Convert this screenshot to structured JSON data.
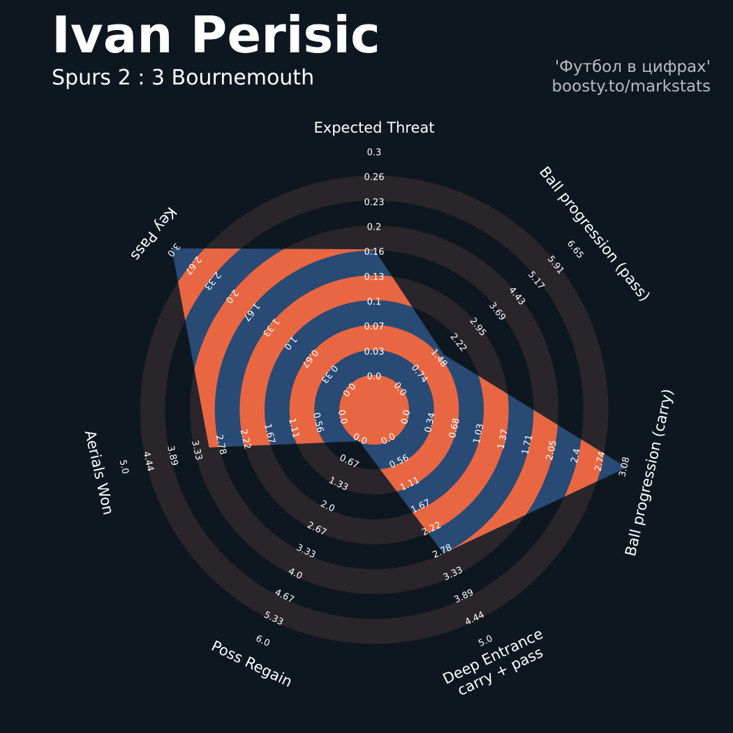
{
  "header": {
    "title": "Ivan Perisic",
    "subtitle": "Spurs 2 : 3 Bournemouth",
    "credit_line1": "'Футбол в цифрах'",
    "credit_line2": "boosty.to/markstats"
  },
  "colors": {
    "background": "#0e171f",
    "ring_band": "#29252b",
    "polygon_blue": "#284a74",
    "polygon_orange": "#e86742",
    "text": "#ffffff"
  },
  "chart_data": {
    "type": "radar",
    "axes": [
      {
        "name": "Expected Threat",
        "ticks": [
          "0.0",
          "0.03",
          "0.07",
          "0.1",
          "0.13",
          "0.16",
          "0.2",
          "0.23",
          "0.26",
          "0.3"
        ],
        "min": 0,
        "max": 0.3,
        "value": 0.168
      },
      {
        "name": "Ball progression (pass)",
        "ticks": [
          "0.0",
          "0.74",
          "1.48",
          "2.22",
          "2.95",
          "3.69",
          "4.43",
          "5.17",
          "5.91",
          "6.65"
        ],
        "min": 0,
        "max": 6.65,
        "value": 1.6
      },
      {
        "name": "Ball progression (carry)",
        "ticks": [
          "0.0",
          "0.34",
          "0.68",
          "1.03",
          "1.37",
          "1.71",
          "2.05",
          "2.4",
          "2.74",
          "3.08"
        ],
        "min": 0,
        "max": 3.08,
        "value": 3.08
      },
      {
        "name": "Deep Entrance\ncarry + pass",
        "ticks": [
          "0.0",
          "0.56",
          "1.11",
          "1.67",
          "2.22",
          "2.78",
          "3.33",
          "3.89",
          "4.44",
          "5.0"
        ],
        "min": 0,
        "max": 5.0,
        "value": 2.78
      },
      {
        "name": "Poss Regain",
        "ticks": [
          "0.0",
          "0.67",
          "1.33",
          "2.0",
          "2.67",
          "3.33",
          "4.0",
          "4.67",
          "5.33",
          "6.0"
        ],
        "min": 0,
        "max": 6.0,
        "value": 0.0
      },
      {
        "name": "Aerials Won",
        "ticks": [
          "0.0",
          "0.56",
          "1.11",
          "1.67",
          "2.22",
          "2.78",
          "3.33",
          "3.89",
          "4.44",
          "5.0"
        ],
        "min": 0,
        "max": 5.0,
        "value": 3.0
      },
      {
        "name": "Key Pass",
        "ticks": [
          "0.0",
          "0.33",
          "0.67",
          "1.0",
          "1.33",
          "1.67",
          "2.0",
          "2.33",
          "2.67",
          "3.0"
        ],
        "min": 0,
        "max": 3.0,
        "value": 3.0
      }
    ]
  }
}
